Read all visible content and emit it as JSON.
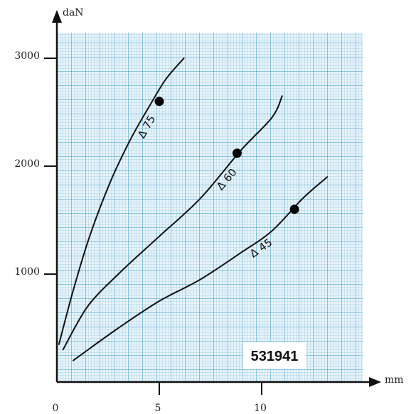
{
  "chart_data": {
    "type": "line",
    "title": "",
    "xlabel": "mm",
    "ylabel": "daN",
    "xlim": [
      0,
      15
    ],
    "ylim": [
      0,
      3400
    ],
    "grid": true,
    "grid_color": "#2e95c9",
    "plot_background": "#e8f3fa",
    "line_color": "#111111",
    "xticks": [
      0,
      5,
      10
    ],
    "xtick_labels": [
      "0",
      "5",
      "10"
    ],
    "yticks": [
      1000,
      2000,
      3000
    ],
    "ytick_labels": [
      "1000",
      "2000",
      "3000"
    ],
    "series": [
      {
        "name": "Δ 75",
        "x": [
          0.1,
          0.8,
          1.6,
          2.6,
          3.6,
          4.5,
          5.3,
          6.2
        ],
        "y": [
          350,
          850,
          1350,
          1850,
          2250,
          2550,
          2800,
          3000
        ],
        "marker": {
          "x": 5.0,
          "y": 2600
        }
      },
      {
        "name": "Δ 60",
        "x": [
          0.3,
          1.5,
          3.0,
          5.0,
          7.0,
          9.0,
          10.5,
          11.0
        ],
        "y": [
          300,
          700,
          1000,
          1350,
          1700,
          2150,
          2450,
          2650
        ],
        "marker": {
          "x": 8.8,
          "y": 2120
        }
      },
      {
        "name": "Δ 45",
        "x": [
          0.8,
          3.0,
          5.0,
          7.0,
          9.0,
          10.5,
          12.0,
          13.2
        ],
        "y": [
          200,
          500,
          750,
          950,
          1200,
          1400,
          1700,
          1900
        ],
        "marker": {
          "x": 11.6,
          "y": 1600
        }
      }
    ],
    "annotation": "531941"
  }
}
